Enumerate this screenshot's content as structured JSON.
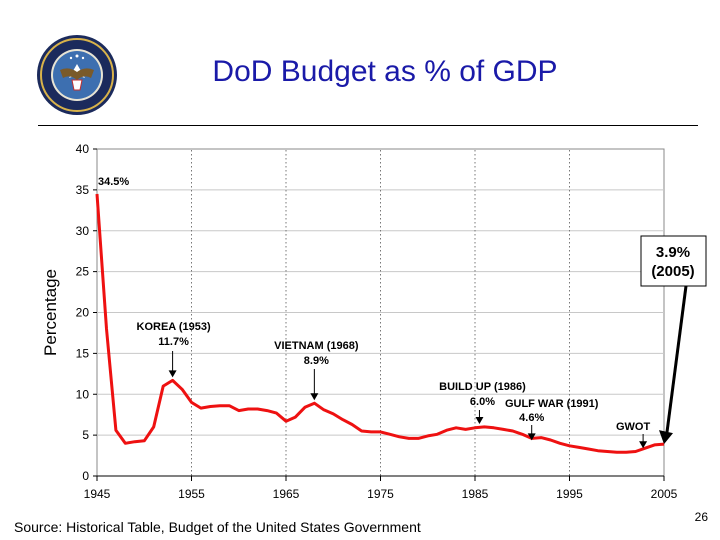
{
  "slide": {
    "title": "DoD Budget as % of GDP",
    "source": "Source: Historical Table, Budget of the United States Government",
    "page_number": "26",
    "seal_text": "DEPARTMENT OF DEFENSE · UNITED STATES OF AMERICA"
  },
  "colors": {
    "title": "#1a1aa8",
    "line": "#ee1111",
    "accent_line": "#ff0000"
  },
  "chart_data": {
    "type": "line",
    "title": "",
    "xlabel": "",
    "ylabel": "Percentage",
    "xlim": [
      1945,
      2005
    ],
    "ylim": [
      0,
      40
    ],
    "x_ticks": [
      1945,
      1955,
      1965,
      1975,
      1985,
      1995,
      2005
    ],
    "y_ticks": [
      0,
      5,
      10,
      15,
      20,
      25,
      30,
      35,
      40
    ],
    "grid": "horizontal",
    "series": [
      {
        "name": "",
        "x": [
          1945,
          1946,
          1947,
          1948,
          1949,
          1950,
          1951,
          1952,
          1953,
          1954,
          1955,
          1956,
          1957,
          1958,
          1959,
          1960,
          1961,
          1962,
          1963,
          1964,
          1965,
          1966,
          1967,
          1968,
          1969,
          1970,
          1971,
          1972,
          1973,
          1974,
          1975,
          1976,
          1977,
          1978,
          1979,
          1980,
          1981,
          1982,
          1983,
          1984,
          1985,
          1986,
          1987,
          1988,
          1989,
          1990,
          1991,
          1992,
          1993,
          1994,
          1995,
          1996,
          1997,
          1998,
          1999,
          2000,
          2001,
          2002,
          2003,
          2004,
          2005
        ],
        "values": [
          34.5,
          18.0,
          5.6,
          4.0,
          4.2,
          4.3,
          6.0,
          11.0,
          11.7,
          10.6,
          9.0,
          8.3,
          8.5,
          8.6,
          8.6,
          8.0,
          8.2,
          8.2,
          8.0,
          7.7,
          6.7,
          7.2,
          8.4,
          8.9,
          8.1,
          7.6,
          6.9,
          6.3,
          5.5,
          5.4,
          5.4,
          5.1,
          4.8,
          4.6,
          4.6,
          4.9,
          5.1,
          5.6,
          5.9,
          5.7,
          5.9,
          6.0,
          5.9,
          5.7,
          5.5,
          5.1,
          4.6,
          4.7,
          4.4,
          4.0,
          3.7,
          3.5,
          3.3,
          3.1,
          3.0,
          2.9,
          2.9,
          3.0,
          3.4,
          3.8,
          3.9
        ]
      }
    ],
    "annotations": [
      {
        "label": "34.5%",
        "x": 1945,
        "y": 34.5
      },
      {
        "label": "KOREA (1953)",
        "value_label": "11.7%",
        "x": 1953,
        "y": 11.7
      },
      {
        "label": "VIETNAM (1968)",
        "value_label": "8.9%",
        "x": 1968,
        "y": 8.9
      },
      {
        "label": "BUILD UP (1986)",
        "value_label": "6.0%",
        "x": 1986,
        "y": 6.0
      },
      {
        "label": "GULF WAR (1991)",
        "value_label": "4.6%",
        "x": 1991,
        "y": 4.6
      },
      {
        "label": "GWOT",
        "x": 2003,
        "y": 3.4
      }
    ],
    "callout": {
      "line1": "3.9%",
      "line2": "(2005)",
      "x": 2005,
      "y": 3.9
    },
    "dotted_verticals": [
      1955,
      1965,
      1975,
      1985,
      1995
    ]
  }
}
